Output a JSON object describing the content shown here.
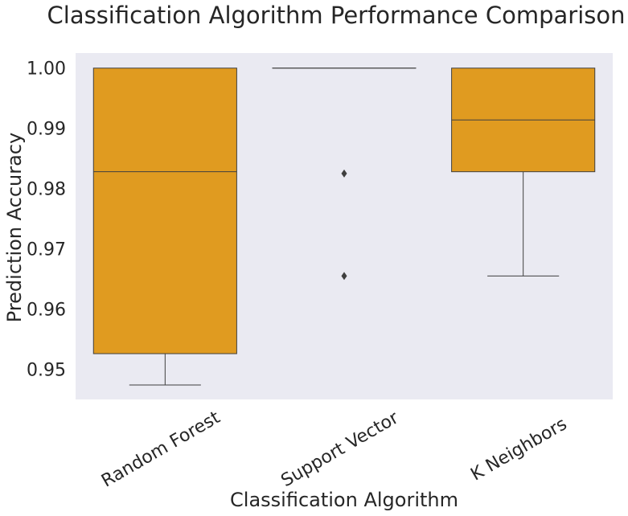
{
  "chart_data": {
    "type": "boxplot",
    "title": "Classification Algorithm Performance Comparison",
    "xlabel": "Classification Algorithm",
    "ylabel": "Prediction Accuracy",
    "ylim": [
      0.945,
      1.0025
    ],
    "yticks": [
      0.95,
      0.96,
      0.97,
      0.98,
      0.99,
      1.0
    ],
    "ytick_labels": [
      "0.95",
      "0.96",
      "0.97",
      "0.98",
      "0.99",
      "1.00"
    ],
    "grid": false,
    "box_color": "#e09b20",
    "background_color": "#eaeaf2",
    "boxes": [
      {
        "category": "Random Forest",
        "whisker_low": 0.9474,
        "q1": 0.9526,
        "median": 0.9828,
        "q3": 1.0,
        "whisker_high": 1.0,
        "outliers": []
      },
      {
        "category": "Support Vector",
        "whisker_low": 1.0,
        "q1": 1.0,
        "median": 1.0,
        "q3": 1.0,
        "whisker_high": 1.0,
        "outliers": [
          0.9825,
          0.9655
        ]
      },
      {
        "category": "K Neighbors",
        "whisker_low": 0.9655,
        "q1": 0.9828,
        "median": 0.9914,
        "q3": 1.0,
        "whisker_high": 1.0,
        "outliers": []
      }
    ]
  }
}
